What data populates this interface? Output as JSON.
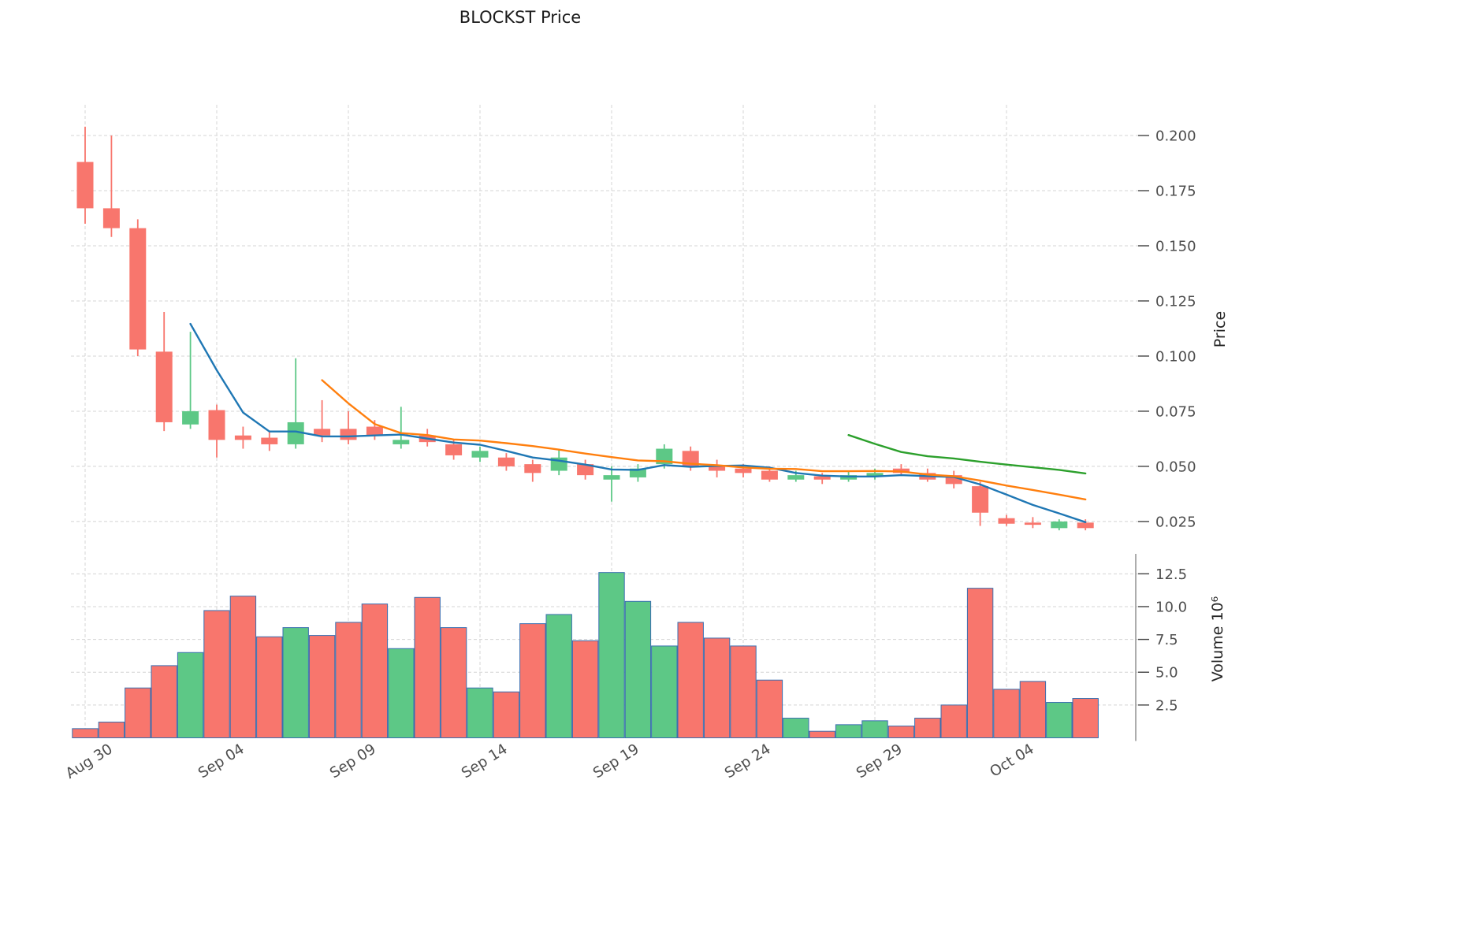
{
  "title": "BLOCKST Price",
  "axes": {
    "price_label": "Price",
    "volume_label": "Volume  10⁶",
    "price_ticks": [
      "0.200",
      "0.175",
      "0.150",
      "0.125",
      "0.100",
      "0.075",
      "0.050",
      "0.025"
    ],
    "volume_ticks": [
      "12.5",
      "10.0",
      "7.5",
      "5.0",
      "2.5"
    ],
    "x_ticks": [
      {
        "index": 0,
        "label": "Aug 30"
      },
      {
        "index": 5,
        "label": "Sep 04"
      },
      {
        "index": 10,
        "label": "Sep 09"
      },
      {
        "index": 15,
        "label": "Sep 14"
      },
      {
        "index": 20,
        "label": "Sep 19"
      },
      {
        "index": 25,
        "label": "Sep 24"
      },
      {
        "index": 30,
        "label": "Sep 29"
      },
      {
        "index": 35,
        "label": "Oct 04"
      }
    ]
  },
  "style": {
    "up_color": "#5dc886",
    "down_color": "#f8766d",
    "volume_edge_color": "#3a6fb0",
    "grid_color": "#d4d4d4",
    "tick_text_color": "#4d4d4d"
  },
  "chart_data": {
    "type": "candlestick",
    "title": "BLOCKST Price",
    "grid": true,
    "legend_position": "none",
    "ylabel": "Price",
    "ylabel_lower": "Volume 10^6",
    "ylim_price": [
      0.0114,
      0.215
    ],
    "ylim_volume": [
      0,
      13.9
    ],
    "dates": [
      "Aug 30",
      "Aug 31",
      "Sep 01",
      "Sep 02",
      "Sep 03",
      "Sep 04",
      "Sep 05",
      "Sep 06",
      "Sep 07",
      "Sep 08",
      "Sep 09",
      "Sep 10",
      "Sep 11",
      "Sep 12",
      "Sep 13",
      "Sep 14",
      "Sep 15",
      "Sep 16",
      "Sep 17",
      "Sep 18",
      "Sep 19",
      "Sep 20",
      "Sep 21",
      "Sep 22",
      "Sep 23",
      "Sep 24",
      "Sep 25",
      "Sep 26",
      "Sep 27",
      "Sep 28",
      "Sep 29",
      "Sep 30",
      "Oct 01",
      "Oct 02",
      "Oct 03",
      "Oct 04",
      "Oct 05",
      "Oct 06",
      "Oct 07"
    ],
    "ohlc": [
      [
        0.188,
        0.204,
        0.16,
        0.167
      ],
      [
        0.167,
        0.2,
        0.154,
        0.158
      ],
      [
        0.158,
        0.162,
        0.1,
        0.103
      ],
      [
        0.102,
        0.12,
        0.066,
        0.07
      ],
      [
        0.069,
        0.111,
        0.067,
        0.075
      ],
      [
        0.0755,
        0.078,
        0.054,
        0.062
      ],
      [
        0.064,
        0.068,
        0.058,
        0.062
      ],
      [
        0.063,
        0.066,
        0.057,
        0.06
      ],
      [
        0.06,
        0.099,
        0.058,
        0.07
      ],
      [
        0.067,
        0.08,
        0.061,
        0.064
      ],
      [
        0.067,
        0.075,
        0.06,
        0.062
      ],
      [
        0.068,
        0.071,
        0.062,
        0.064
      ],
      [
        0.06,
        0.077,
        0.058,
        0.062
      ],
      [
        0.064,
        0.067,
        0.059,
        0.061
      ],
      [
        0.06,
        0.062,
        0.053,
        0.055
      ],
      [
        0.054,
        0.059,
        0.052,
        0.057
      ],
      [
        0.054,
        0.056,
        0.048,
        0.05
      ],
      [
        0.051,
        0.053,
        0.043,
        0.047
      ],
      [
        0.048,
        0.058,
        0.046,
        0.054
      ],
      [
        0.051,
        0.053,
        0.044,
        0.046
      ],
      [
        0.044,
        0.05,
        0.034,
        0.046
      ],
      [
        0.045,
        0.051,
        0.043,
        0.049
      ],
      [
        0.051,
        0.06,
        0.049,
        0.058
      ],
      [
        0.057,
        0.059,
        0.048,
        0.05
      ],
      [
        0.05,
        0.053,
        0.045,
        0.048
      ],
      [
        0.049,
        0.051,
        0.045,
        0.047
      ],
      [
        0.048,
        0.05,
        0.043,
        0.044
      ],
      [
        0.044,
        0.048,
        0.043,
        0.046
      ],
      [
        0.0455,
        0.047,
        0.042,
        0.044
      ],
      [
        0.044,
        0.048,
        0.043,
        0.046
      ],
      [
        0.0455,
        0.049,
        0.044,
        0.047
      ],
      [
        0.049,
        0.051,
        0.046,
        0.047
      ],
      [
        0.047,
        0.049,
        0.043,
        0.044
      ],
      [
        0.046,
        0.048,
        0.04,
        0.042
      ],
      [
        0.041,
        0.043,
        0.023,
        0.029
      ],
      [
        0.0265,
        0.028,
        0.023,
        0.024
      ],
      [
        0.0245,
        0.027,
        0.022,
        0.0235
      ],
      [
        0.022,
        0.026,
        0.021,
        0.025
      ],
      [
        0.0245,
        0.026,
        0.021,
        0.022
      ]
    ],
    "volume_millions": [
      0.7,
      1.2,
      3.8,
      5.5,
      6.5,
      9.7,
      10.8,
      7.7,
      8.4,
      7.8,
      8.8,
      10.2,
      6.8,
      10.7,
      8.4,
      3.8,
      3.5,
      8.7,
      9.4,
      7.4,
      12.6,
      10.4,
      7.0,
      8.8,
      7.6,
      7.0,
      4.4,
      1.5,
      0.5,
      1.0,
      1.3,
      0.9,
      1.5,
      2.5,
      11.4,
      3.7,
      4.3,
      2.7,
      3.0
    ],
    "moving_averages": [
      {
        "name": "ma-fast",
        "color": "#1f77b4",
        "start_index": 4,
        "values": [
          0.1146,
          0.0936,
          0.0744,
          0.0658,
          0.0658,
          0.0636,
          0.0636,
          0.064,
          0.0644,
          0.0626,
          0.0608,
          0.0598,
          0.057,
          0.054,
          0.0526,
          0.0508,
          0.0486,
          0.0484,
          0.0506,
          0.0498,
          0.0502,
          0.0504,
          0.0494,
          0.047,
          0.0458,
          0.0454,
          0.0454,
          0.046,
          0.0456,
          0.0452,
          0.0418,
          0.0372,
          0.0325,
          0.0287,
          0.0247
        ]
      },
      {
        "name": "ma-mid",
        "color": "#ff7f0e",
        "start_index": 9,
        "values": [
          0.0891,
          0.0786,
          0.0692,
          0.0651,
          0.0642,
          0.0622,
          0.0617,
          0.0605,
          0.0592,
          0.0576,
          0.0558,
          0.0542,
          0.0527,
          0.0523,
          0.0512,
          0.0505,
          0.0495,
          0.0489,
          0.0488,
          0.0478,
          0.0478,
          0.0479,
          0.0477,
          0.0463,
          0.0455,
          0.0436,
          0.0413,
          0.0393,
          0.0372,
          0.035
        ]
      },
      {
        "name": "ma-slow",
        "color": "#2ca02c",
        "start_index": 29,
        "values": [
          0.0642,
          0.0602,
          0.0565,
          0.0546,
          0.0536,
          0.0521,
          0.0508,
          0.0496,
          0.0484,
          0.0468
        ]
      }
    ]
  }
}
